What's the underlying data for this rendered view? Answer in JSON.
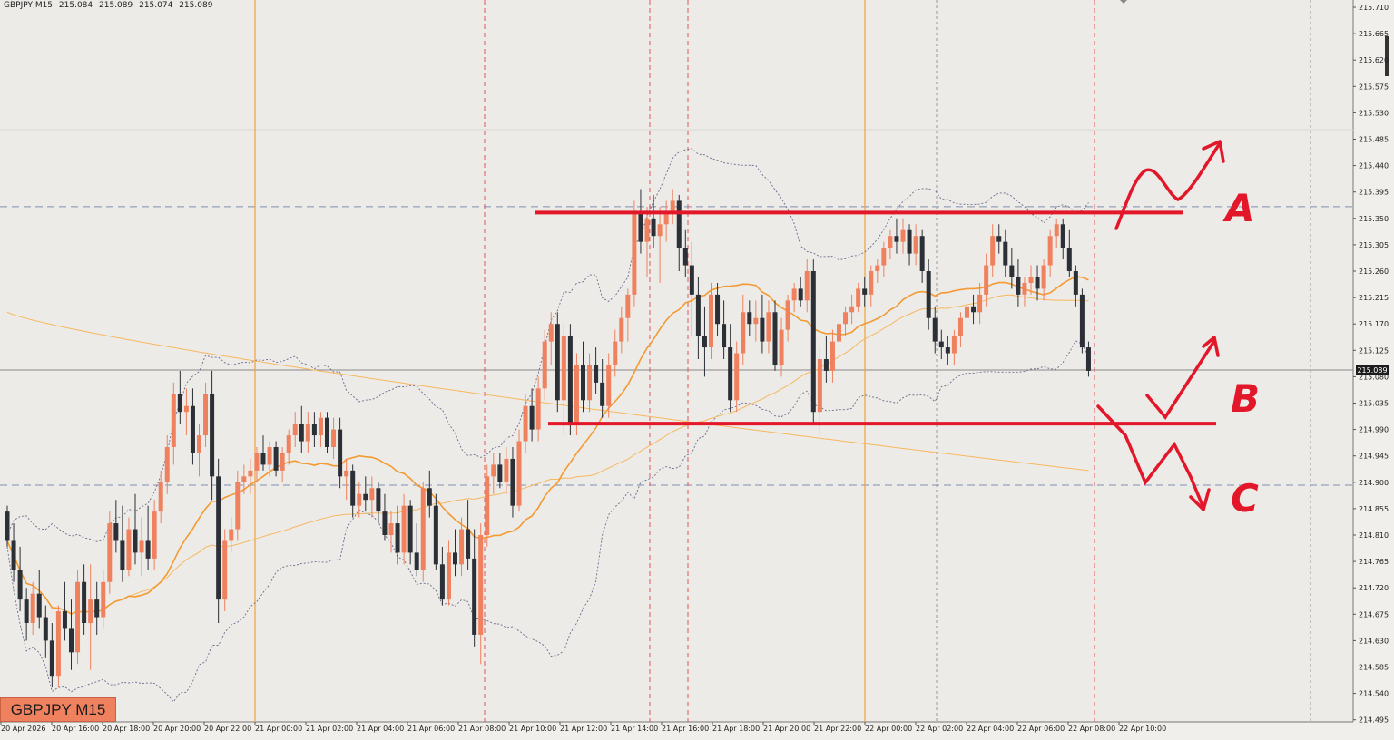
{
  "header": {
    "symbol_tf": "GBPJPY,M15",
    "open": "215.084",
    "high": "215.089",
    "low": "215.074",
    "close": "215.089"
  },
  "symbol_badge": "GBPJPY M15",
  "current_price_label": "215.089",
  "annotations": {
    "scenario_a": "A",
    "scenario_b": "B",
    "scenario_c": "C"
  },
  "colors": {
    "background": "#ecebe7",
    "bull": "#f0815e",
    "bear": "#2b2f36",
    "ma_fast": "#f39a32",
    "ma_slow": "#f7b860",
    "bands": "#6a6a8e",
    "annotation_red": "#e3172a",
    "session_orange": "#f2a13a"
  },
  "chart_data": {
    "type": "candlestick",
    "symbol": "GBPJPY",
    "timeframe": "M15",
    "y_ticks": [
      "215.710",
      "215.665",
      "215.620",
      "215.575",
      "215.530",
      "215.485",
      "215.440",
      "215.395",
      "215.350",
      "215.305",
      "215.260",
      "215.215",
      "215.170",
      "215.125",
      "215.080",
      "215.035",
      "214.990",
      "214.945",
      "214.900",
      "214.855",
      "214.810",
      "214.765",
      "214.720",
      "214.675",
      "214.630",
      "214.585",
      "214.540",
      "214.495"
    ],
    "x_ticks": [
      "20 Apr 2026",
      "20 Apr 16:00",
      "20 Apr 18:00",
      "20 Apr 20:00",
      "20 Apr 22:00",
      "21 Apr 00:00",
      "21 Apr 02:00",
      "21 Apr 04:00",
      "21 Apr 06:00",
      "21 Apr 08:00",
      "21 Apr 10:00",
      "21 Apr 12:00",
      "21 Apr 14:00",
      "21 Apr 16:00",
      "21 Apr 18:00",
      "21 Apr 20:00",
      "21 Apr 22:00",
      "22 Apr 00:00",
      "22 Apr 02:00",
      "22 Apr 04:00",
      "22 Apr 06:00",
      "22 Apr 08:00",
      "22 Apr 10:00"
    ],
    "resistance_level": 215.36,
    "support_level": 215.0,
    "current_price": 215.089,
    "blue_dashed_levels": [
      215.37,
      214.895
    ],
    "pink_dashed_level": 214.585,
    "price_ohlc": [
      [
        214.85,
        214.86,
        214.79,
        214.8
      ],
      [
        214.8,
        214.83,
        214.73,
        214.75
      ],
      [
        214.75,
        214.79,
        214.68,
        214.7
      ],
      [
        214.7,
        214.72,
        214.63,
        214.66
      ],
      [
        214.66,
        214.73,
        214.64,
        214.71
      ],
      [
        214.71,
        214.75,
        214.65,
        214.67
      ],
      [
        214.67,
        214.69,
        214.6,
        214.63
      ],
      [
        214.63,
        214.66,
        214.55,
        214.57
      ],
      [
        214.57,
        214.69,
        214.55,
        214.68
      ],
      [
        214.68,
        214.73,
        214.63,
        214.65
      ],
      [
        214.65,
        214.7,
        214.58,
        214.61
      ],
      [
        214.61,
        214.75,
        214.59,
        214.73
      ],
      [
        214.73,
        214.76,
        214.64,
        214.66
      ],
      [
        214.66,
        214.76,
        214.58,
        214.7
      ],
      [
        214.7,
        214.73,
        214.64,
        214.67
      ],
      [
        214.67,
        214.75,
        214.65,
        214.73
      ],
      [
        214.73,
        214.85,
        214.71,
        214.83
      ],
      [
        214.83,
        214.87,
        214.78,
        214.8
      ],
      [
        214.8,
        214.86,
        214.73,
        214.75
      ],
      [
        214.75,
        214.84,
        214.74,
        214.82
      ],
      [
        214.82,
        214.88,
        214.76,
        214.78
      ],
      [
        214.78,
        214.84,
        214.74,
        214.8
      ],
      [
        214.8,
        214.86,
        214.75,
        214.77
      ],
      [
        214.77,
        214.87,
        214.75,
        214.85
      ],
      [
        214.85,
        214.92,
        214.83,
        214.9
      ],
      [
        214.9,
        214.98,
        214.88,
        214.96
      ],
      [
        214.96,
        215.07,
        214.93,
        215.05
      ],
      [
        215.05,
        215.09,
        215.0,
        215.02
      ],
      [
        215.02,
        215.06,
        214.98,
        215.03
      ],
      [
        215.03,
        215.06,
        214.93,
        214.95
      ],
      [
        214.95,
        215.0,
        214.91,
        214.98
      ],
      [
        214.98,
        215.07,
        214.96,
        215.05
      ],
      [
        215.05,
        215.09,
        214.87,
        214.91
      ],
      [
        214.91,
        214.94,
        214.66,
        214.7
      ],
      [
        214.7,
        214.82,
        214.68,
        214.8
      ],
      [
        214.8,
        214.84,
        214.78,
        214.82
      ],
      [
        214.82,
        214.92,
        214.8,
        214.9
      ],
      [
        214.9,
        214.93,
        214.88,
        214.91
      ],
      [
        214.91,
        214.94,
        214.88,
        214.92
      ],
      [
        214.92,
        214.96,
        214.9,
        214.95
      ],
      [
        214.95,
        214.98,
        214.92,
        214.93
      ],
      [
        214.93,
        214.97,
        214.91,
        214.96
      ],
      [
        214.96,
        214.97,
        214.91,
        214.92
      ],
      [
        214.92,
        214.96,
        214.9,
        214.95
      ],
      [
        214.95,
        214.99,
        214.93,
        214.98
      ],
      [
        214.98,
        215.02,
        214.96,
        215.0
      ],
      [
        215.0,
        215.03,
        214.95,
        214.97
      ],
      [
        214.97,
        215.02,
        214.95,
        215.0
      ],
      [
        215.0,
        215.02,
        214.96,
        214.98
      ],
      [
        214.98,
        215.02,
        214.96,
        215.01
      ],
      [
        215.01,
        215.02,
        214.95,
        214.96
      ],
      [
        214.96,
        215.01,
        214.94,
        214.99
      ],
      [
        214.99,
        215.01,
        214.89,
        214.91
      ],
      [
        214.91,
        214.94,
        214.87,
        214.92
      ],
      [
        214.92,
        214.93,
        214.84,
        214.86
      ],
      [
        214.86,
        214.9,
        214.84,
        214.88
      ],
      [
        214.88,
        214.91,
        214.85,
        214.87
      ],
      [
        214.87,
        214.91,
        214.84,
        214.89
      ],
      [
        214.89,
        214.9,
        214.83,
        214.85
      ],
      [
        214.85,
        214.88,
        214.8,
        214.81
      ],
      [
        214.81,
        214.85,
        214.78,
        214.83
      ],
      [
        214.83,
        214.86,
        214.76,
        214.78
      ],
      [
        214.78,
        214.88,
        214.76,
        214.86
      ],
      [
        214.86,
        214.87,
        214.76,
        214.78
      ],
      [
        214.78,
        214.83,
        214.74,
        214.75
      ],
      [
        214.75,
        214.9,
        214.73,
        214.89
      ],
      [
        214.89,
        214.92,
        214.84,
        214.86
      ],
      [
        214.86,
        214.88,
        214.75,
        214.76
      ],
      [
        214.76,
        214.79,
        214.69,
        214.7
      ],
      [
        214.7,
        214.8,
        214.69,
        214.78
      ],
      [
        214.78,
        214.82,
        214.74,
        214.76
      ],
      [
        214.76,
        214.84,
        214.74,
        214.82
      ],
      [
        214.82,
        214.87,
        214.75,
        214.77
      ],
      [
        214.77,
        214.82,
        214.62,
        214.64
      ],
      [
        214.64,
        214.83,
        214.59,
        214.81
      ],
      [
        214.81,
        214.93,
        214.79,
        214.91
      ],
      [
        214.91,
        214.95,
        214.88,
        214.93
      ],
      [
        214.93,
        214.95,
        214.89,
        214.9
      ],
      [
        214.9,
        214.96,
        214.88,
        214.94
      ],
      [
        214.94,
        214.96,
        214.84,
        214.86
      ],
      [
        214.86,
        214.99,
        214.85,
        214.97
      ],
      [
        214.97,
        215.05,
        214.95,
        215.03
      ],
      [
        215.03,
        215.06,
        214.97,
        214.99
      ],
      [
        214.99,
        215.08,
        214.97,
        215.06
      ],
      [
        215.06,
        215.16,
        215.04,
        215.14
      ],
      [
        215.14,
        215.19,
        215.1,
        215.17
      ],
      [
        215.17,
        215.19,
        215.02,
        215.04
      ],
      [
        215.04,
        215.17,
        214.98,
        215.15
      ],
      [
        215.15,
        215.17,
        214.98,
        215.0
      ],
      [
        215.0,
        215.12,
        214.98,
        215.1
      ],
      [
        215.1,
        215.14,
        215.02,
        215.04
      ],
      [
        215.04,
        215.12,
        215.02,
        215.1
      ],
      [
        215.1,
        215.13,
        215.05,
        215.07
      ],
      [
        215.07,
        215.11,
        215.01,
        215.03
      ],
      [
        215.03,
        215.12,
        215.01,
        215.1
      ],
      [
        215.1,
        215.16,
        215.08,
        215.14
      ],
      [
        215.14,
        215.2,
        215.12,
        215.18
      ],
      [
        215.18,
        215.23,
        215.14,
        215.22
      ],
      [
        215.22,
        215.38,
        215.2,
        215.36
      ],
      [
        215.36,
        215.4,
        215.29,
        215.31
      ],
      [
        215.31,
        215.37,
        215.25,
        215.35
      ],
      [
        215.35,
        215.39,
        215.3,
        215.32
      ],
      [
        215.32,
        215.37,
        215.24,
        215.34
      ],
      [
        215.34,
        215.38,
        215.31,
        215.36
      ],
      [
        215.36,
        215.4,
        215.34,
        215.38
      ],
      [
        215.38,
        215.39,
        215.26,
        215.3
      ],
      [
        215.3,
        215.33,
        215.25,
        215.27
      ],
      [
        215.27,
        215.31,
        215.15,
        215.22
      ],
      [
        215.22,
        215.25,
        215.11,
        215.15
      ],
      [
        215.15,
        215.2,
        215.08,
        215.13
      ],
      [
        215.13,
        215.24,
        215.11,
        215.22
      ],
      [
        215.22,
        215.24,
        215.15,
        215.17
      ],
      [
        215.17,
        215.21,
        215.11,
        215.13
      ],
      [
        215.13,
        215.17,
        215.02,
        215.04
      ],
      [
        215.04,
        215.14,
        215.02,
        215.12
      ],
      [
        215.12,
        215.22,
        215.1,
        215.19
      ],
      [
        215.19,
        215.21,
        215.15,
        215.17
      ],
      [
        215.17,
        215.21,
        215.14,
        215.18
      ],
      [
        215.18,
        215.22,
        215.12,
        215.14
      ],
      [
        215.14,
        215.21,
        215.12,
        215.19
      ],
      [
        215.19,
        215.21,
        215.09,
        215.1
      ],
      [
        215.1,
        215.18,
        215.08,
        215.16
      ],
      [
        215.16,
        215.22,
        215.14,
        215.21
      ],
      [
        215.21,
        215.24,
        215.19,
        215.23
      ],
      [
        215.23,
        215.25,
        215.2,
        215.21
      ],
      [
        215.21,
        215.28,
        215.19,
        215.26
      ],
      [
        215.26,
        215.28,
        215.0,
        215.02
      ],
      [
        215.02,
        215.13,
        214.98,
        215.11
      ],
      [
        215.11,
        215.15,
        215.07,
        215.09
      ],
      [
        215.09,
        215.16,
        215.07,
        215.14
      ],
      [
        215.14,
        215.19,
        215.12,
        215.17
      ],
      [
        215.17,
        215.2,
        215.15,
        215.19
      ],
      [
        215.19,
        215.22,
        215.17,
        215.2
      ],
      [
        215.2,
        215.24,
        215.19,
        215.23
      ],
      [
        215.23,
        215.25,
        215.2,
        215.22
      ],
      [
        215.22,
        215.27,
        215.2,
        215.26
      ],
      [
        215.26,
        215.28,
        215.24,
        215.27
      ],
      [
        215.27,
        215.31,
        215.25,
        215.3
      ],
      [
        215.3,
        215.33,
        215.28,
        215.32
      ],
      [
        215.32,
        215.35,
        215.29,
        215.31
      ],
      [
        215.31,
        215.35,
        215.29,
        215.33
      ],
      [
        215.33,
        215.34,
        215.27,
        215.29
      ],
      [
        215.29,
        215.34,
        215.27,
        215.32
      ],
      [
        215.32,
        215.33,
        215.24,
        215.26
      ],
      [
        215.26,
        215.28,
        215.16,
        215.18
      ],
      [
        215.18,
        215.2,
        215.12,
        215.14
      ],
      [
        215.14,
        215.16,
        215.11,
        215.13
      ],
      [
        215.13,
        215.15,
        215.1,
        215.12
      ],
      [
        215.12,
        215.16,
        215.1,
        215.15
      ],
      [
        215.15,
        215.19,
        215.13,
        215.18
      ],
      [
        215.18,
        215.22,
        215.16,
        215.2
      ],
      [
        215.2,
        215.22,
        215.17,
        215.19
      ],
      [
        215.19,
        215.24,
        215.17,
        215.22
      ],
      [
        215.22,
        215.29,
        215.2,
        215.27
      ],
      [
        215.27,
        215.34,
        215.25,
        215.32
      ],
      [
        215.32,
        215.34,
        215.29,
        215.31
      ],
      [
        215.31,
        215.33,
        215.25,
        215.27
      ],
      [
        215.27,
        215.3,
        215.23,
        215.25
      ],
      [
        215.25,
        215.28,
        215.2,
        215.22
      ],
      [
        215.22,
        215.25,
        215.2,
        215.24
      ],
      [
        215.24,
        215.27,
        215.22,
        215.25
      ],
      [
        215.25,
        215.27,
        215.21,
        215.23
      ],
      [
        215.23,
        215.28,
        215.21,
        215.27
      ],
      [
        215.27,
        215.33,
        215.25,
        215.32
      ],
      [
        215.32,
        215.35,
        215.3,
        215.34
      ],
      [
        215.34,
        215.35,
        215.28,
        215.3
      ],
      [
        215.3,
        215.33,
        215.25,
        215.26
      ],
      [
        215.26,
        215.27,
        215.2,
        215.22
      ],
      [
        215.22,
        215.23,
        215.12,
        215.13
      ],
      [
        215.13,
        215.14,
        215.08,
        215.09
      ]
    ]
  }
}
